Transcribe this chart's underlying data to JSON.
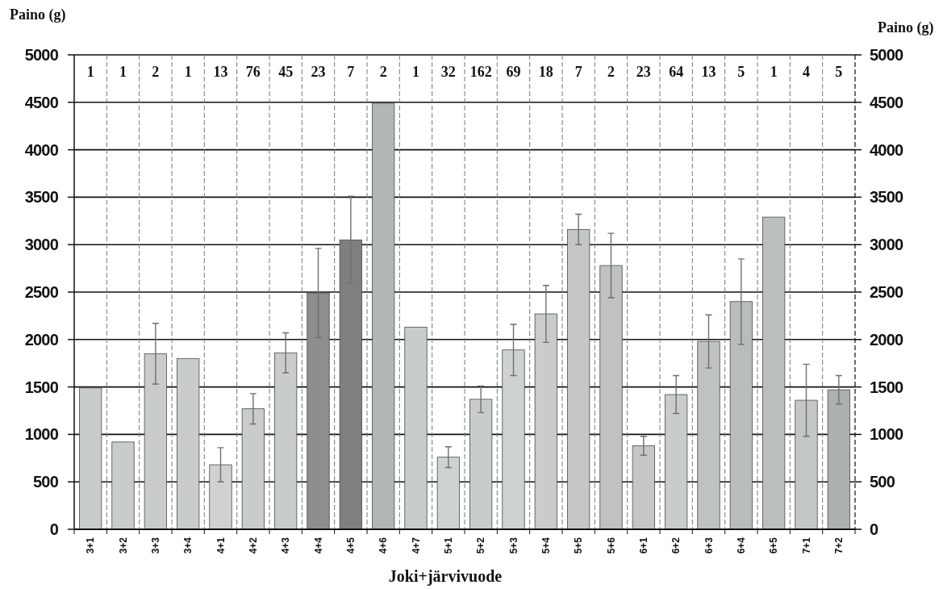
{
  "chart_data": {
    "type": "bar",
    "ylabel": "Paino (g)",
    "y2label": "Paino (g)",
    "xlabel": "Joki+järvivuode",
    "categories": [
      "3+1",
      "3+2",
      "3+3",
      "3+4",
      "4+1",
      "4+2",
      "4+3",
      "4+4",
      "4+5",
      "4+6",
      "4+7",
      "5+1",
      "5+2",
      "5+3",
      "5+4",
      "5+5",
      "5+6",
      "6+1",
      "6+2",
      "6+3",
      "6+4",
      "6+5",
      "7+1",
      "7+2"
    ],
    "values": [
      1490,
      920,
      1850,
      1800,
      680,
      1270,
      1860,
      2490,
      3050,
      4490,
      2130,
      760,
      1370,
      1890,
      2270,
      3160,
      2780,
      880,
      1420,
      1980,
      2400,
      3290,
      1360,
      1470
    ],
    "errors": [
      null,
      null,
      320,
      null,
      180,
      160,
      210,
      470,
      460,
      null,
      null,
      110,
      140,
      270,
      300,
      160,
      340,
      100,
      200,
      280,
      450,
      null,
      380,
      150
    ],
    "colors": [
      "#c9cccc",
      "#c9cccc",
      "#c9cccc",
      "#c9cccc",
      "#cfd2d2",
      "#c9cccc",
      "#c9cccc",
      "#8c8d8d",
      "#7e7f7f",
      "#b3b6b6",
      "#c9cccc",
      "#cfd2d2",
      "#c9cccc",
      "#cfd2d2",
      "#c9cccc",
      "#c4c7c7",
      "#bfc2c2",
      "#c4c7c7",
      "#c9cccc",
      "#bfc2c2",
      "#b9bcbc",
      "#bcbfbf",
      "#c4c7c7",
      "#adb0b0"
    ],
    "ylim": [
      0,
      5000
    ],
    "yticks": [
      0,
      500,
      1000,
      1500,
      2000,
      2500,
      3000,
      3500,
      4000,
      4500,
      5000
    ],
    "y2lim": [
      0,
      5000
    ],
    "y2ticks": [
      0,
      500,
      1000,
      1500,
      2000,
      2500,
      3000,
      3500,
      4000,
      4500,
      5000
    ],
    "grid": true,
    "annotations": [
      "1",
      "1",
      "2",
      "1",
      "13",
      "76",
      "45",
      "23",
      "7",
      "2",
      "1",
      "32",
      "162",
      "69",
      "18",
      "7",
      "2",
      "23",
      "64",
      "13",
      "5",
      "1",
      "4",
      "5"
    ]
  }
}
